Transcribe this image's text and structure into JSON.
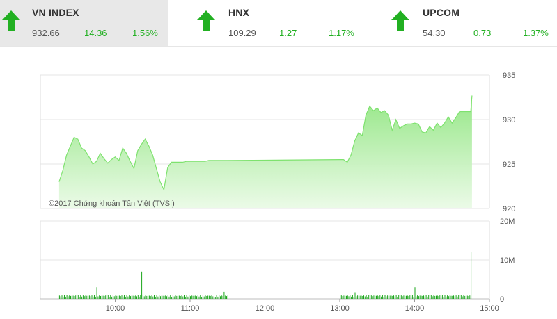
{
  "indices": [
    {
      "name": "VN INDEX",
      "value": "932.66",
      "change": "14.36",
      "percent": "1.56%",
      "direction": "up",
      "active": true
    },
    {
      "name": "HNX",
      "value": "109.29",
      "change": "1.27",
      "percent": "1.17%",
      "direction": "up",
      "active": false
    },
    {
      "name": "UPCOM",
      "value": "54.30",
      "change": "0.73",
      "percent": "1.37%",
      "direction": "up",
      "active": false
    }
  ],
  "colors": {
    "up_green": "#22b022",
    "line_green": "#7ee26e",
    "volume_green": "#1aa61a",
    "active_tile_bg": "#e8e8e8"
  },
  "chart_data": {
    "type": "area",
    "watermark": "©2017 Chứng khoán Tân Việt (TVSI)",
    "x_ticks": [
      "10:00",
      "11:00",
      "12:00",
      "13:00",
      "14:00",
      "15:00"
    ],
    "price": {
      "ylim": [
        920,
        935
      ],
      "y_ticks": [
        "935",
        "930",
        "925",
        "920"
      ],
      "x": [
        "9:15",
        "9:18",
        "9:21",
        "9:24",
        "9:27",
        "9:30",
        "9:33",
        "9:36",
        "9:39",
        "9:42",
        "9:45",
        "9:48",
        "9:51",
        "9:54",
        "9:57",
        "10:00",
        "10:03",
        "10:06",
        "10:09",
        "10:12",
        "10:15",
        "10:18",
        "10:21",
        "10:24",
        "10:27",
        "10:30",
        "10:33",
        "10:36",
        "10:39",
        "10:42",
        "10:45",
        "10:48",
        "10:51",
        "10:54",
        "10:57",
        "11:00",
        "11:03",
        "11:06",
        "11:09",
        "11:12",
        "11:15",
        "11:18",
        "11:21",
        "11:24",
        "11:27",
        "11:30",
        "13:00",
        "13:03",
        "13:06",
        "13:09",
        "13:12",
        "13:15",
        "13:18",
        "13:21",
        "13:24",
        "13:27",
        "13:30",
        "13:33",
        "13:36",
        "13:39",
        "13:42",
        "13:45",
        "13:48",
        "13:51",
        "13:54",
        "13:57",
        "14:00",
        "14:03",
        "14:06",
        "14:09",
        "14:12",
        "14:15",
        "14:18",
        "14:21",
        "14:24",
        "14:27",
        "14:30",
        "14:33",
        "14:36",
        "14:39",
        "14:42",
        "14:45",
        "14:46"
      ],
      "values": [
        923.0,
        924.3,
        926.0,
        927.0,
        928.0,
        927.8,
        926.8,
        926.5,
        925.8,
        925.0,
        925.3,
        926.2,
        925.6,
        925.1,
        925.5,
        925.8,
        925.4,
        926.8,
        926.2,
        925.3,
        924.5,
        926.5,
        927.2,
        927.8,
        927.0,
        926.0,
        924.5,
        923.0,
        922.1,
        924.6,
        925.2,
        925.2,
        925.2,
        925.2,
        925.3,
        925.3,
        925.3,
        925.3,
        925.3,
        925.3,
        925.4,
        925.4,
        925.4,
        925.4,
        925.4,
        925.4,
        925.5,
        925.5,
        925.2,
        926.0,
        927.6,
        928.5,
        928.2,
        930.5,
        931.5,
        931.0,
        931.3,
        930.8,
        931.0,
        930.5,
        928.8,
        930.0,
        929.0,
        929.3,
        929.5,
        929.5,
        929.6,
        929.5,
        928.6,
        928.5,
        929.2,
        928.8,
        929.6,
        929.1,
        929.6,
        930.3,
        929.6,
        930.2,
        930.9,
        930.9,
        930.9,
        930.9,
        932.7
      ]
    },
    "volume": {
      "ylim": [
        0,
        20000000
      ],
      "y_ticks": [
        "20M",
        "10M",
        "0"
      ],
      "spikes": [
        {
          "time": "9:45",
          "value": 3000000
        },
        {
          "time": "10:21",
          "value": 7000000
        },
        {
          "time": "11:27",
          "value": 1800000
        },
        {
          "time": "13:12",
          "value": 1700000
        },
        {
          "time": "14:00",
          "value": 3000000
        },
        {
          "time": "14:45",
          "value": 12000000
        }
      ],
      "base_level": 900000
    }
  }
}
